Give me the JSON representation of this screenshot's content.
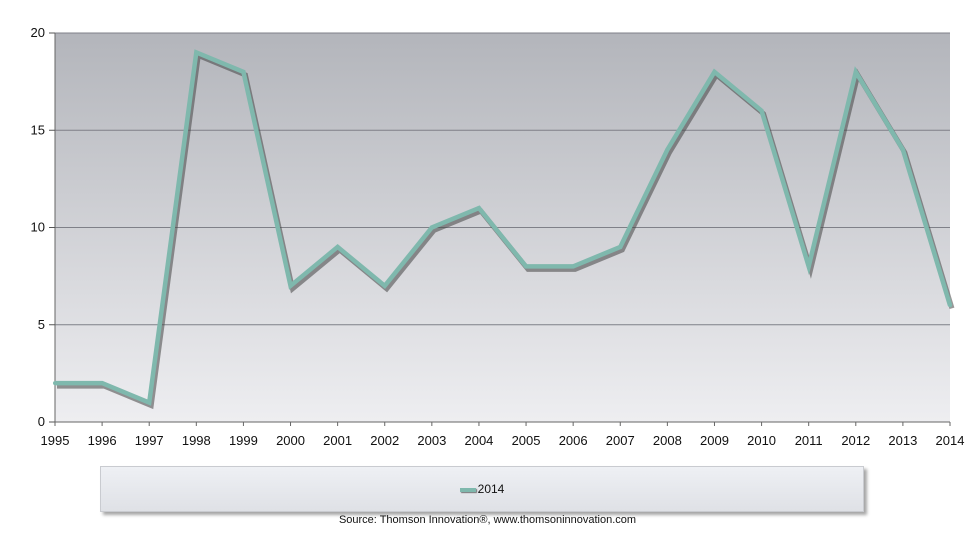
{
  "chart_data": {
    "type": "line",
    "x": [
      "1995",
      "1996",
      "1997",
      "1998",
      "1999",
      "2000",
      "2001",
      "2002",
      "2003",
      "2004",
      "2005",
      "2006",
      "2007",
      "2008",
      "2009",
      "2010",
      "2011",
      "2012",
      "2013",
      "2014"
    ],
    "series": [
      {
        "name": "2014",
        "values": [
          2,
          2,
          1,
          19,
          18,
          7,
          9,
          7,
          10,
          11,
          8,
          8,
          9,
          14,
          18,
          16,
          8,
          18,
          14,
          6
        ],
        "color": "#7fb8ad"
      }
    ],
    "yticks": [
      0,
      5,
      10,
      15,
      20
    ],
    "ylim": [
      0,
      20
    ],
    "grid": true,
    "legend": "bottom-center"
  },
  "colors": {
    "plot_top": "#b3b5bb",
    "plot_bottom": "#eeeef1",
    "line": "#7fb8ad",
    "shadow": "#444444"
  },
  "source": "Source: Thomson Innovation®, www.thomsoninnovation.com"
}
